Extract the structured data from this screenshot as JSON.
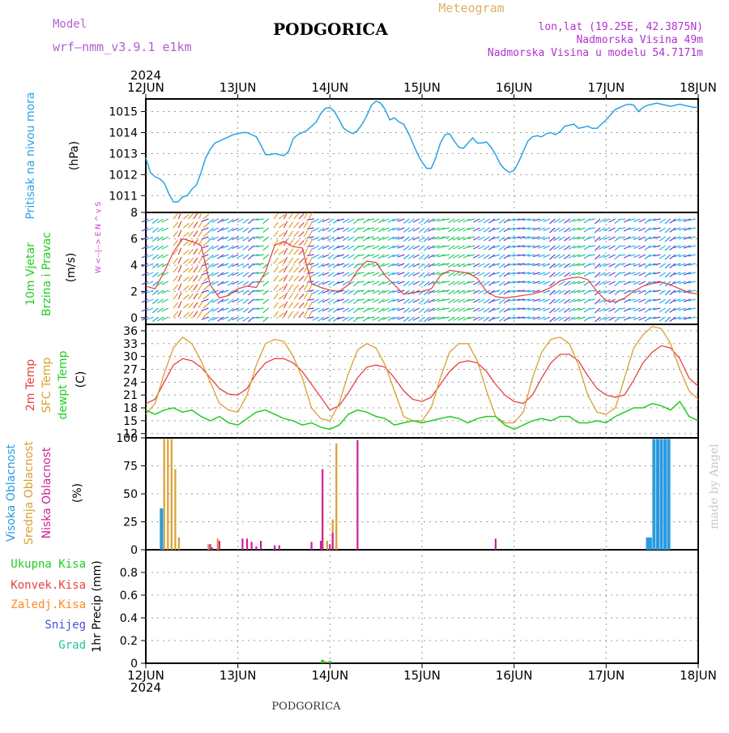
{
  "header": {
    "model_label": "Model",
    "model_value": "wrf—nmm_v3.9.1  e1km",
    "title": "PODGORICA",
    "meteogram_label": "Meteogram",
    "coords": "lon,lat (19.25E, 42.3875N)",
    "elev": "Nadmorska Visina 49m",
    "elev_model": "Nadmorska Visina u modelu 54.7171m",
    "footer": "PODGORICA",
    "watermark": "made by Angel"
  },
  "colors": {
    "pressure": "#29a3e6",
    "wind": "#22cc22",
    "wind_axis": "#cc33cc",
    "t2m": "#e64040",
    "sfc": "#d9a030",
    "dewpt": "#22cc22",
    "high": "#2a9be0",
    "mid": "#d9a030",
    "low": "#cc2299",
    "total_precip": "#22cc22",
    "conv": "#e64040",
    "frozen": "#ff8822",
    "snow": "#4a4ae0",
    "hail": "#22c0a0",
    "grid": "#999999"
  },
  "chart_data": [
    {
      "type": "line",
      "panel": "pressure",
      "ylabel_colored": "Pritisak na nivou mora",
      "ylabel_units": "(hPa)",
      "ylim": [
        1010.2,
        1015.6
      ],
      "yticks": [
        "1011",
        "1012",
        "1013",
        "1014",
        "1015"
      ],
      "xlabels_top": [
        "12JUN",
        "13JUN",
        "14JUN",
        "15JUN",
        "16JUN",
        "17JUN",
        "18JUN"
      ],
      "year": "2024",
      "grid": true,
      "series": [
        {
          "name": "Pritisak na nivou mora",
          "x": [
            0,
            0.05,
            0.1,
            0.15,
            0.2,
            0.25,
            0.3,
            0.35,
            0.4,
            0.45,
            0.5,
            0.55,
            0.6,
            0.65,
            0.7,
            0.75,
            0.8,
            0.85,
            0.9,
            0.95,
            1.0,
            1.05,
            1.1,
            1.15,
            1.2,
            1.25,
            1.3,
            1.35,
            1.4,
            1.45,
            1.5,
            1.55,
            1.6,
            1.65,
            1.7,
            1.75,
            1.8,
            1.85,
            1.9,
            1.95,
            2.0,
            2.05,
            2.1,
            2.15,
            2.2,
            2.25,
            2.3,
            2.35,
            2.4,
            2.45,
            2.5,
            2.55,
            2.6,
            2.65,
            2.7,
            2.75,
            2.8,
            2.85,
            2.9,
            2.95,
            3.0,
            3.05,
            3.1,
            3.15,
            3.2,
            3.25,
            3.3,
            3.35,
            3.4,
            3.45,
            3.5,
            3.55,
            3.6,
            3.65,
            3.7,
            3.75,
            3.8,
            3.85,
            3.9,
            3.95,
            4.0,
            4.05,
            4.1,
            4.15,
            4.2,
            4.25,
            4.3,
            4.35,
            4.4,
            4.45,
            4.5,
            4.55,
            4.6,
            4.65,
            4.7,
            4.75,
            4.8,
            4.85,
            4.9,
            4.95,
            5.0,
            5.05,
            5.1,
            5.15,
            5.2,
            5.25,
            5.3,
            5.35,
            5.4,
            5.45,
            5.5,
            5.55,
            5.6,
            5.65,
            5.7,
            5.75,
            5.8,
            5.85,
            5.9,
            5.95,
            6.0
          ],
          "values": [
            1012.8,
            1012.1,
            1011.9,
            1011.8,
            1011.6,
            1011.1,
            1010.7,
            1010.7,
            1010.95,
            1011.0,
            1011.3,
            1011.5,
            1012.1,
            1012.8,
            1013.2,
            1013.5,
            1013.6,
            1013.7,
            1013.8,
            1013.9,
            1013.95,
            1014.0,
            1014.0,
            1013.9,
            1013.8,
            1013.4,
            1012.95,
            1012.95,
            1013.0,
            1012.95,
            1012.9,
            1013.1,
            1013.7,
            1013.9,
            1014.0,
            1014.1,
            1014.3,
            1014.5,
            1014.9,
            1015.15,
            1015.2,
            1015.0,
            1014.6,
            1014.2,
            1014.05,
            1013.95,
            1014.1,
            1014.4,
            1014.8,
            1015.3,
            1015.5,
            1015.4,
            1015.1,
            1014.6,
            1014.7,
            1014.5,
            1014.4,
            1014.0,
            1013.5,
            1013.0,
            1012.6,
            1012.3,
            1012.3,
            1012.8,
            1013.5,
            1013.9,
            1013.95,
            1013.6,
            1013.3,
            1013.25,
            1013.5,
            1013.75,
            1013.5,
            1013.5,
            1013.55,
            1013.3,
            1012.95,
            1012.5,
            1012.25,
            1012.1,
            1012.2,
            1012.6,
            1013.1,
            1013.6,
            1013.8,
            1013.85,
            1013.8,
            1013.95,
            1014.0,
            1013.9,
            1014.05,
            1014.3,
            1014.35,
            1014.4,
            1014.2,
            1014.25,
            1014.3,
            1014.2,
            1014.2,
            1014.4,
            1014.6,
            1014.85,
            1015.1,
            1015.2,
            1015.3,
            1015.35,
            1015.3,
            1015.0,
            1015.2,
            1015.3,
            1015.35,
            1015.4,
            1015.35,
            1015.3,
            1015.25,
            1015.3,
            1015.35,
            1015.3,
            1015.25,
            1015.2,
            1015.2
          ]
        }
      ]
    },
    {
      "type": "line",
      "panel": "wind",
      "ylabel_colored": "10m Vjetar Brzina i Pravac",
      "ylabel_units": "(m/s)",
      "axis_note": "W <--|--> E  N ^ v S",
      "ylim": [
        -0.5,
        8
      ],
      "yticks": [
        "0",
        "2",
        "4",
        "6",
        "8"
      ],
      "grid": true,
      "series": [
        {
          "name": "10m Vjetar",
          "x": [
            0,
            0.1,
            0.2,
            0.3,
            0.4,
            0.5,
            0.6,
            0.7,
            0.8,
            0.9,
            1.0,
            1.1,
            1.2,
            1.3,
            1.4,
            1.5,
            1.6,
            1.7,
            1.8,
            1.9,
            2.0,
            2.1,
            2.2,
            2.3,
            2.4,
            2.5,
            2.6,
            2.7,
            2.8,
            2.9,
            3.0,
            3.1,
            3.2,
            3.3,
            3.4,
            3.5,
            3.6,
            3.7,
            3.8,
            3.9,
            4.0,
            4.1,
            4.2,
            4.3,
            4.4,
            4.5,
            4.6,
            4.7,
            4.8,
            4.9,
            5.0,
            5.1,
            5.2,
            5.3,
            5.4,
            5.5,
            5.6,
            5.7,
            5.8,
            5.9,
            6.0
          ],
          "values": [
            2.4,
            2.2,
            3.5,
            5.0,
            6.0,
            5.8,
            5.5,
            2.5,
            1.5,
            1.7,
            2.2,
            2.4,
            2.3,
            3.5,
            5.5,
            5.8,
            5.4,
            5.3,
            2.6,
            2.3,
            2.1,
            2.0,
            2.5,
            3.6,
            4.3,
            4.2,
            3.2,
            2.5,
            1.8,
            1.9,
            2.0,
            2.2,
            3.2,
            3.6,
            3.5,
            3.4,
            3.0,
            2.0,
            1.6,
            1.5,
            1.6,
            1.7,
            1.8,
            2.0,
            2.3,
            2.8,
            3.0,
            3.1,
            2.9,
            2.0,
            1.3,
            1.2,
            1.5,
            2.0,
            2.4,
            2.6,
            2.7,
            2.5,
            2.2,
            1.9,
            1.8
          ]
        }
      ]
    },
    {
      "type": "line",
      "panel": "temperature",
      "ylabel_colored": [
        "2m Temp",
        "SFC Temp",
        "dewpt Temp"
      ],
      "ylabel_units": "(C)",
      "ylim": [
        11,
        37.5
      ],
      "yticks": [
        "12",
        "15",
        "18",
        "21",
        "24",
        "27",
        "30",
        "33",
        "36"
      ],
      "grid": true,
      "series": [
        {
          "name": "2m Temp",
          "x": [
            0,
            0.1,
            0.2,
            0.3,
            0.4,
            0.5,
            0.6,
            0.7,
            0.8,
            0.9,
            1.0,
            1.1,
            1.2,
            1.3,
            1.4,
            1.5,
            1.6,
            1.7,
            1.8,
            1.9,
            2.0,
            2.1,
            2.2,
            2.3,
            2.4,
            2.5,
            2.6,
            2.7,
            2.8,
            2.9,
            3.0,
            3.1,
            3.2,
            3.3,
            3.4,
            3.5,
            3.6,
            3.7,
            3.8,
            3.9,
            4.0,
            4.1,
            4.2,
            4.3,
            4.4,
            4.5,
            4.6,
            4.7,
            4.8,
            4.9,
            5.0,
            5.1,
            5.2,
            5.3,
            5.4,
            5.5,
            5.6,
            5.7,
            5.8,
            5.9,
            6.0
          ],
          "values": [
            19,
            20,
            24,
            28,
            29.5,
            29,
            27.5,
            25,
            22.5,
            21.2,
            21,
            22.5,
            26,
            28.5,
            29.5,
            29.5,
            28.5,
            26.5,
            23.5,
            20.5,
            17.5,
            18.5,
            21.5,
            25,
            27.5,
            28,
            27.5,
            25,
            22,
            20,
            19.5,
            20.5,
            23.5,
            26.5,
            28.5,
            29,
            28.5,
            26.5,
            23.5,
            21,
            19.5,
            19,
            21,
            25,
            28.5,
            30.5,
            30.5,
            29,
            25.5,
            22.5,
            21,
            20.5,
            21,
            24.5,
            28.5,
            31,
            32.5,
            32,
            29.5,
            25,
            23
          ]
        },
        {
          "name": "SFC Temp",
          "x": [
            0,
            0.1,
            0.2,
            0.3,
            0.4,
            0.5,
            0.6,
            0.7,
            0.8,
            0.9,
            1.0,
            1.1,
            1.2,
            1.3,
            1.4,
            1.5,
            1.6,
            1.7,
            1.8,
            1.9,
            2.0,
            2.1,
            2.2,
            2.3,
            2.4,
            2.5,
            2.6,
            2.7,
            2.8,
            2.9,
            3.0,
            3.1,
            3.2,
            3.3,
            3.4,
            3.5,
            3.6,
            3.7,
            3.8,
            3.9,
            4.0,
            4.1,
            4.2,
            4.3,
            4.4,
            4.5,
            4.6,
            4.7,
            4.8,
            4.9,
            5.0,
            5.1,
            5.2,
            5.3,
            5.4,
            5.5,
            5.6,
            5.7,
            5.8,
            5.9,
            6.0
          ],
          "values": [
            16.5,
            19,
            26,
            32,
            34.5,
            33,
            29,
            24,
            19,
            17.5,
            17,
            21,
            28,
            33,
            34,
            33.5,
            30,
            25,
            18,
            15.5,
            15,
            19,
            26,
            31.5,
            33,
            32,
            28,
            22,
            16,
            15,
            15,
            18,
            25,
            31,
            33,
            33,
            29,
            22,
            16,
            14.5,
            14.5,
            17,
            25,
            31,
            34,
            34.5,
            33,
            28,
            21,
            17,
            16.5,
            18,
            25,
            32,
            35,
            37,
            36.5,
            33,
            27,
            22,
            20
          ]
        },
        {
          "name": "dewpt Temp",
          "x": [
            0,
            0.1,
            0.2,
            0.3,
            0.4,
            0.5,
            0.6,
            0.7,
            0.8,
            0.9,
            1.0,
            1.1,
            1.2,
            1.3,
            1.4,
            1.5,
            1.6,
            1.7,
            1.8,
            1.9,
            2.0,
            2.1,
            2.2,
            2.3,
            2.4,
            2.5,
            2.6,
            2.7,
            2.8,
            2.9,
            3.0,
            3.1,
            3.2,
            3.3,
            3.4,
            3.5,
            3.6,
            3.7,
            3.8,
            3.9,
            4.0,
            4.1,
            4.2,
            4.3,
            4.4,
            4.5,
            4.6,
            4.7,
            4.8,
            4.9,
            5.0,
            5.1,
            5.2,
            5.3,
            5.4,
            5.5,
            5.6,
            5.7,
            5.8,
            5.9,
            6.0
          ],
          "values": [
            17.5,
            16.5,
            17.5,
            18,
            17,
            17.5,
            16,
            15,
            16,
            14.5,
            14,
            15.5,
            17,
            17.5,
            16.5,
            15.5,
            15,
            14,
            14.5,
            13.5,
            13,
            14,
            16.5,
            17.5,
            17,
            16,
            15.5,
            14,
            14.5,
            15,
            14.5,
            15,
            15.5,
            16,
            15.5,
            14.5,
            15.5,
            16,
            16,
            14,
            13,
            14,
            15,
            15.5,
            15,
            16,
            16,
            14.5,
            14.5,
            15,
            14.5,
            16,
            17,
            18,
            18,
            19,
            18.5,
            17.5,
            19.5,
            16,
            15
          ]
        }
      ]
    },
    {
      "type": "bar",
      "panel": "clouds",
      "ylabel_colored": [
        "Visoka Oblacnost",
        "Srednja Oblacnost",
        "Niska Oblacnost"
      ],
      "ylabel_units": "(%)",
      "ylim": [
        0,
        100
      ],
      "yticks": [
        "0",
        "25",
        "50",
        "75",
        "100"
      ],
      "grid": true,
      "series": [
        {
          "name": "Visoka Oblacnost",
          "x": [
            0.17,
            4.95,
            5.45,
            5.48,
            5.52,
            5.56,
            5.6,
            5.64,
            5.68
          ],
          "values": [
            37,
            1,
            11,
            11,
            99,
            99,
            99,
            99,
            99
          ]
        },
        {
          "name": "Srednja Oblacnost",
          "x": [
            0.2,
            0.24,
            0.28,
            0.32,
            0.36,
            0.68,
            0.78,
            1.8,
            1.92,
            1.97,
            2.03,
            2.07
          ],
          "values": [
            99,
            99,
            99,
            72,
            11,
            5,
            10,
            3,
            46,
            8,
            27,
            95
          ]
        },
        {
          "name": "Niska Oblacnost",
          "x": [
            0.7,
            0.72,
            0.8,
            1.05,
            1.1,
            1.15,
            1.2,
            1.25,
            1.4,
            1.45,
            1.8,
            1.9,
            1.92,
            2.0,
            2.03,
            2.3,
            3.8
          ],
          "values": [
            5,
            2,
            8,
            10,
            10,
            7,
            3,
            8,
            4,
            4,
            7,
            8,
            72,
            5,
            15,
            98,
            10
          ]
        }
      ]
    },
    {
      "type": "bar",
      "panel": "precip",
      "ylabel_colored": [
        "Ukupna  Kisa",
        "Konvek.Kisa",
        "Zaledj.Kisa",
        "Snijeg",
        "Grad"
      ],
      "ylabel_units": "1hr Precip (mm)",
      "ylim": [
        0,
        1.0
      ],
      "yticks": [
        "0",
        "0.2",
        "0.4",
        "0.6",
        "0.8"
      ],
      "xlabels_bottom": [
        "12JUN",
        "13JUN",
        "14JUN",
        "15JUN",
        "16JUN",
        "17JUN",
        "18JUN"
      ],
      "year": "2024",
      "grid": true,
      "series": [
        {
          "name": "Ukupna  Kisa",
          "x": [
            1.92,
            2.0
          ],
          "values": [
            0.03,
            0.02
          ]
        },
        {
          "name": "Konvek.Kisa",
          "x": [
            1.95
          ],
          "values": [
            0.015
          ]
        }
      ]
    }
  ]
}
